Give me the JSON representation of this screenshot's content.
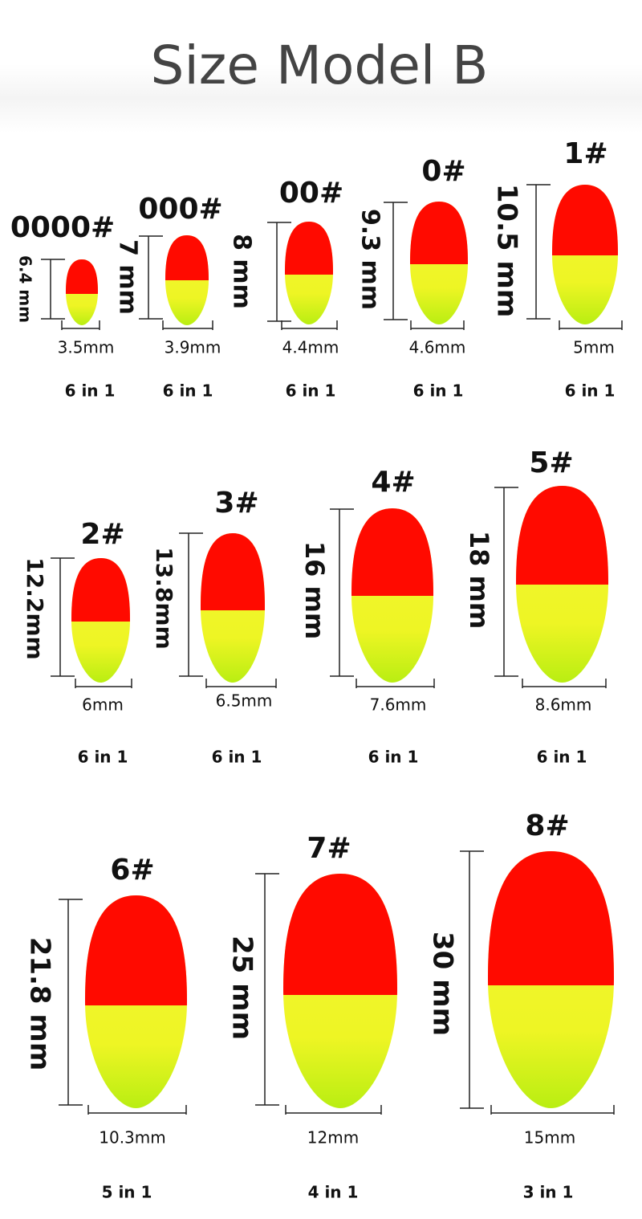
{
  "header": {
    "title": "Size Model B"
  },
  "items": [
    {
      "label": "0000#",
      "height": "6.4 mm",
      "width": "3.5mm",
      "count": "6 in 1"
    },
    {
      "label": "000#",
      "height": "7 mm",
      "width": "3.9mm",
      "count": "6 in 1"
    },
    {
      "label": "00#",
      "height": "8 mm",
      "width": "4.4mm",
      "count": "6 in 1"
    },
    {
      "label": "0#",
      "height": "9.3 mm",
      "width": "4.6mm",
      "count": "6 in 1"
    },
    {
      "label": "1#",
      "height": "10.5 mm",
      "width": "5mm",
      "count": "6 in 1"
    },
    {
      "label": "2#",
      "height": "12.2mm",
      "width": "6mm",
      "count": "6 in 1"
    },
    {
      "label": "3#",
      "height": "13.8mm",
      "width": "6.5mm",
      "count": "6 in 1"
    },
    {
      "label": "4#",
      "height": "16 mm",
      "width": "7.6mm",
      "count": "6 in 1"
    },
    {
      "label": "5#",
      "height": "18 mm",
      "width": "8.6mm",
      "count": "6 in 1"
    },
    {
      "label": "6#",
      "height": "21.8 mm",
      "width": "10.3mm",
      "count": "5 in 1"
    },
    {
      "label": "7#",
      "height": "25 mm",
      "width": "12mm",
      "count": "4 in 1"
    },
    {
      "label": "8#",
      "height": "30 mm",
      "width": "15mm",
      "count": "3 in 1"
    }
  ]
}
